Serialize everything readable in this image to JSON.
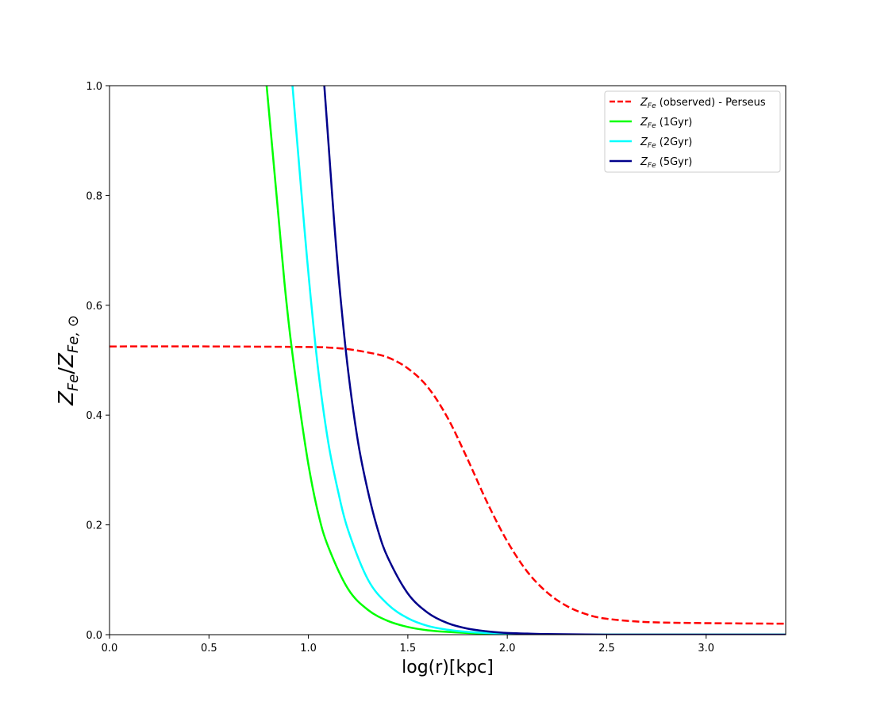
{
  "chart_data": {
    "type": "line",
    "xlabel": "log(r)[kpc]",
    "ylabel": {
      "base": "Z",
      "sub": "Fe",
      "den_base": "Z",
      "den_sub": "Fe, ⊙"
    },
    "xlim": [
      0.0,
      3.4
    ],
    "ylim": [
      0.0,
      1.0
    ],
    "xticks": [
      "0.0",
      "0.5",
      "1.0",
      "1.5",
      "2.0",
      "2.5",
      "3.0"
    ],
    "yticks": [
      "0.0",
      "0.2",
      "0.4",
      "0.6",
      "0.8",
      "1.0"
    ],
    "grid": false,
    "legend_position": "top-right",
    "series": [
      {
        "name": "Z_Fe (observed) - Perseus",
        "legend_base": "Z",
        "legend_sub": "Fe",
        "legend_rest": " (observed) - Perseus",
        "color": "#ff0000",
        "dashed": true,
        "x": [
          0.0,
          0.5,
          1.0,
          1.1,
          1.2,
          1.3,
          1.4,
          1.5,
          1.6,
          1.7,
          1.8,
          1.9,
          2.0,
          2.1,
          2.2,
          2.3,
          2.4,
          2.5,
          2.7,
          3.0,
          3.4
        ],
        "y": [
          0.525,
          0.525,
          0.524,
          0.523,
          0.52,
          0.514,
          0.505,
          0.485,
          0.451,
          0.395,
          0.32,
          0.24,
          0.17,
          0.115,
          0.077,
          0.052,
          0.037,
          0.029,
          0.023,
          0.021,
          0.02
        ]
      },
      {
        "name": "Z_Fe (1Gyr)",
        "legend_base": "Z",
        "legend_sub": "Fe",
        "legend_rest": " (1Gyr)",
        "color": "#00ff00",
        "dashed": false,
        "x": [
          0.79,
          0.82,
          0.85,
          0.88,
          0.91,
          0.95,
          1.0,
          1.05,
          1.1,
          1.2,
          1.3,
          1.4,
          1.5,
          1.6,
          1.7,
          1.8,
          1.9,
          2.0,
          2.2,
          2.5,
          3.0,
          3.4
        ],
        "y": [
          1.0,
          0.88,
          0.76,
          0.64,
          0.54,
          0.43,
          0.31,
          0.22,
          0.16,
          0.083,
          0.045,
          0.025,
          0.014,
          0.008,
          0.005,
          0.003,
          0.002,
          0.001,
          0.0,
          0.0,
          0.0,
          0.0
        ]
      },
      {
        "name": "Z_Fe (2Gyr)",
        "legend_base": "Z",
        "legend_sub": "Fe",
        "legend_rest": " (2Gyr)",
        "color": "#00ffff",
        "dashed": false,
        "x": [
          0.92,
          0.95,
          0.98,
          1.01,
          1.05,
          1.1,
          1.15,
          1.2,
          1.3,
          1.4,
          1.5,
          1.6,
          1.7,
          1.8,
          1.9,
          2.0,
          2.2,
          2.5,
          3.0,
          3.4
        ],
        "y": [
          1.0,
          0.87,
          0.74,
          0.62,
          0.48,
          0.35,
          0.26,
          0.19,
          0.1,
          0.055,
          0.03,
          0.016,
          0.009,
          0.005,
          0.003,
          0.002,
          0.0,
          0.0,
          0.0,
          0.0
        ]
      },
      {
        "name": "Z_Fe (5Gyr)",
        "legend_base": "Z",
        "legend_sub": "Fe",
        "legend_rest": " (5Gyr)",
        "color": "#00008b",
        "dashed": false,
        "x": [
          1.08,
          1.1,
          1.13,
          1.16,
          1.2,
          1.25,
          1.3,
          1.35,
          1.4,
          1.5,
          1.6,
          1.7,
          1.8,
          1.9,
          2.0,
          2.1,
          2.2,
          2.5,
          3.0,
          3.4
        ],
        "y": [
          1.0,
          0.9,
          0.75,
          0.62,
          0.48,
          0.35,
          0.26,
          0.19,
          0.14,
          0.075,
          0.04,
          0.021,
          0.011,
          0.006,
          0.003,
          0.002,
          0.001,
          0.0,
          0.0,
          0.0
        ]
      }
    ]
  }
}
